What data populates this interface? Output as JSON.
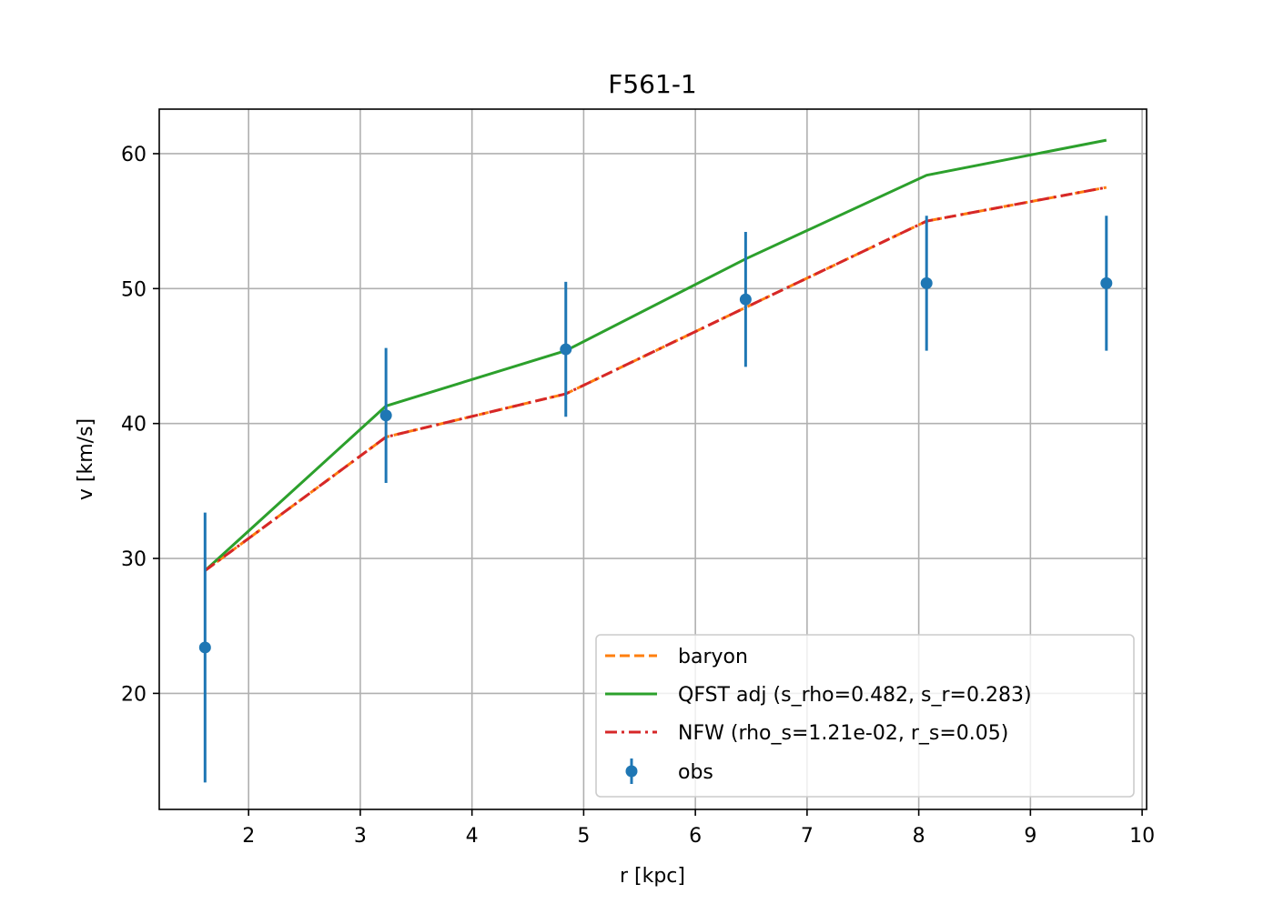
{
  "chart_data": {
    "type": "line",
    "title": "F561-1",
    "xlabel": "r [kpc]",
    "ylabel": "v [km/s]",
    "xlim": [
      1.2,
      10.04
    ],
    "ylim": [
      11.4,
      63.3
    ],
    "xticks": [
      2,
      3,
      4,
      5,
      6,
      7,
      8,
      9,
      10
    ],
    "yticks": [
      20,
      30,
      40,
      50,
      60
    ],
    "grid": true,
    "legend_position": "lower right",
    "x": [
      1.61,
      3.23,
      4.84,
      6.45,
      8.07,
      9.68
    ],
    "series": [
      {
        "name": "baryon",
        "style": "dashed",
        "color": "#ff7f0e",
        "values": [
          29.1,
          39.0,
          42.2,
          48.6,
          55.0,
          57.5
        ]
      },
      {
        "name": "QFST adj (s_rho=0.482, s_r=0.283)",
        "style": "solid",
        "color": "#2ca02c",
        "values": [
          29.1,
          41.3,
          45.4,
          52.2,
          58.4,
          61.0
        ]
      },
      {
        "name": "NFW (rho_s=1.21e-02, r_s=0.05)",
        "style": "dashdot",
        "color": "#d62728",
        "values": [
          29.1,
          39.0,
          42.2,
          48.6,
          55.0,
          57.5
        ]
      }
    ],
    "observations": {
      "name": "obs",
      "color": "#1f77b4",
      "values": [
        23.4,
        40.6,
        45.5,
        49.2,
        50.4,
        50.4
      ],
      "errors": [
        10.0,
        5.0,
        5.0,
        5.0,
        5.0,
        5.0
      ]
    }
  }
}
